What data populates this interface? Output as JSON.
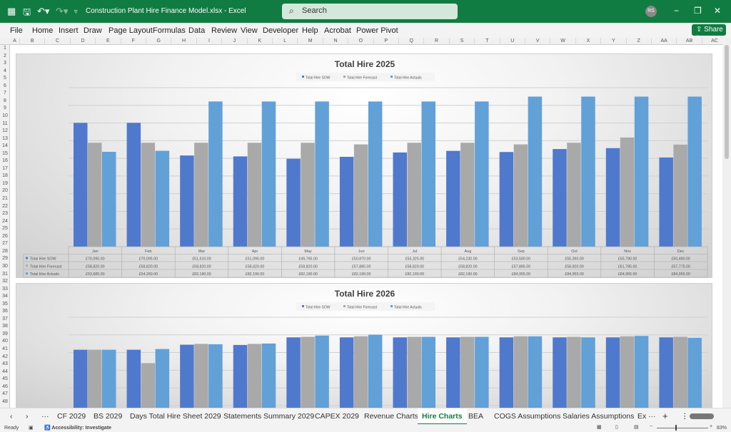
{
  "titlebar": {
    "doc_title": "Construction Plant Hire Finance Model.xlsx  -  Excel",
    "search_placeholder": "Search",
    "avatar": "RS"
  },
  "menu": [
    "File",
    "Home",
    "Insert",
    "Draw",
    "Page Layout",
    "Formulas",
    "Data",
    "Review",
    "View",
    "Developer",
    "Help",
    "Acrobat",
    "Power Pivot"
  ],
  "share_label": "Share",
  "columns": [
    "A",
    "B",
    "C",
    "D",
    "E",
    "F",
    "G",
    "H",
    "I",
    "J",
    "K",
    "L",
    "M",
    "N",
    "O",
    "P",
    "Q",
    "R",
    "S",
    "T",
    "U",
    "V",
    "W",
    "X",
    "Y",
    "Z",
    "AA",
    "AB",
    "AC"
  ],
  "rows": [
    "1",
    "2",
    "3",
    "4",
    "5",
    "6",
    "7",
    "8",
    "9",
    "10",
    "11",
    "12",
    "13",
    "14",
    "15",
    "16",
    "17",
    "18",
    "19",
    "20",
    "21",
    "22",
    "23",
    "24",
    "25",
    "26",
    "27",
    "28",
    "29",
    "30",
    "31",
    "32",
    "33",
    "34",
    "35",
    "36",
    "37",
    "38",
    "39",
    "40",
    "41",
    "42",
    "43",
    "44",
    "45",
    "46",
    "47",
    "48"
  ],
  "colors": {
    "sow": "#4f79cc",
    "forecast": "#a9a9a9",
    "actuals": "#62a0d8",
    "excel_green": "#107c41"
  },
  "chart_data": [
    {
      "type": "bar",
      "title": "Total Hire 2025",
      "legend": "top",
      "grid": true,
      "ylim": [
        0,
        90000
      ],
      "categories": [
        "Jan",
        "Feb",
        "Mar",
        "Apr",
        "May",
        "Jun",
        "Jul",
        "Aug",
        "Sep",
        "Oct",
        "Nov",
        "Dec"
      ],
      "series": [
        {
          "name": "Total Hire SOW",
          "values": [
            70095,
            70095,
            51610,
            51095,
            49765,
            50870,
            53325,
            54230,
            53580,
            55260,
            55780,
            50480
          ],
          "labels": [
            "£70,095.00",
            "£70,095.00",
            "£51,610.00",
            "£51,095.00",
            "£49,765.00",
            "£50,870.00",
            "£53,325.00",
            "£54,230.00",
            "£53,580.00",
            "£55,260.00",
            "£55,780.00",
            "£50,480.00"
          ]
        },
        {
          "name": "Total Hire Forecast",
          "values": [
            58820,
            58820,
            58820,
            58820,
            58820,
            57885,
            58820,
            58820,
            57885,
            58820,
            61785,
            57775
          ],
          "labels": [
            "£58,820.00",
            "£58,820.00",
            "£58,820.00",
            "£58,820.00",
            "£58,820.00",
            "£57,885.00",
            "£58,820.00",
            "£58,820.00",
            "£57,885.00",
            "£58,820.00",
            "£61,785.00",
            "£57,775.00"
          ]
        },
        {
          "name": "Total Hire Actuals",
          "values": [
            53685,
            54260,
            82190,
            82190,
            82190,
            82190,
            82190,
            82190,
            84955,
            84955,
            84955,
            84955
          ],
          "labels": [
            "£53,685.00",
            "£54,260.00",
            "£82,190.00",
            "£82,190.00",
            "£82,190.00",
            "£82,190.00",
            "£82,190.00",
            "£82,190.00",
            "£84,955.00",
            "£84,955.00",
            "£84,955.00",
            "£84,955.00"
          ]
        }
      ]
    },
    {
      "type": "bar",
      "title": "Total Hire 2026",
      "legend": "top",
      "grid": true,
      "ylim": [
        0,
        90000
      ],
      "categories": [
        "Jan",
        "Feb",
        "Mar",
        "Apr",
        "May",
        "Jun",
        "Jul",
        "Aug",
        "Sep",
        "Oct",
        "Nov",
        "Dec"
      ],
      "series": [
        {
          "name": "Total Hire SOW",
          "values": [
            71600,
            71600,
            74450,
            74300,
            78600,
            78600,
            78600,
            78600,
            78600,
            78600,
            78600,
            78600
          ]
        },
        {
          "name": "Total Hire Forecast",
          "values": [
            71600,
            64000,
            74900,
            74900,
            78900,
            79200,
            78900,
            78900,
            79200,
            78900,
            79200,
            78900
          ]
        },
        {
          "name": "Total Hire Actuals",
          "values": [
            71600,
            72000,
            74700,
            75100,
            79600,
            80100,
            78900,
            78900,
            79200,
            78600,
            79400,
            78300
          ]
        }
      ]
    }
  ],
  "tabs": {
    "items": [
      "CF 2029",
      "BS 2029",
      "Days Total Hire Sheet 2029",
      "Statements Summary 2029",
      "CAPEX 2029",
      "Revenue Charts",
      "Hire Charts",
      "BEA",
      "COGS Assumptions",
      "Salaries Assumptions",
      "Ex"
    ],
    "active": "Hire Charts"
  },
  "status": {
    "ready": "Ready",
    "accessibility": "Accessibility: Investigate",
    "zoom": "83%"
  }
}
